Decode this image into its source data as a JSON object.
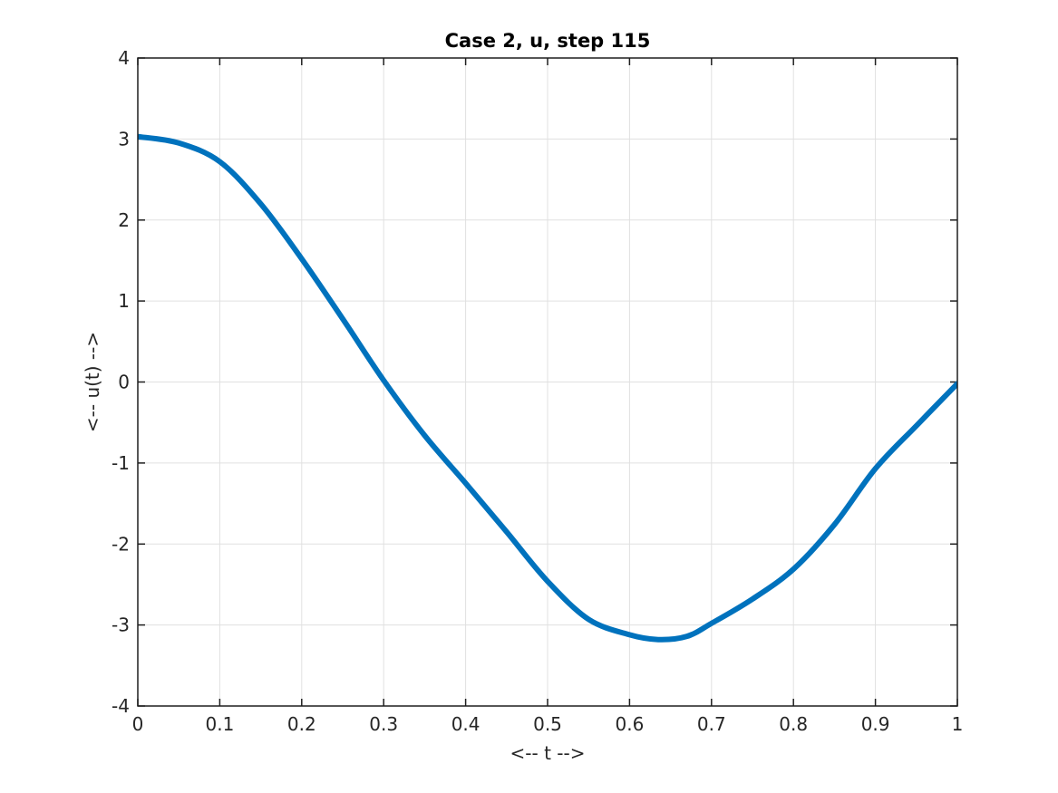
{
  "figure": {
    "background": "#ffffff"
  },
  "chart_data": {
    "type": "line",
    "title": "Case 2, u, step 115",
    "xlabel": "<-- t -->",
    "ylabel": "<-- u(t) -->",
    "xlim": [
      0,
      1
    ],
    "ylim": [
      -4,
      4
    ],
    "x_ticks": [
      0,
      0.1,
      0.2,
      0.3,
      0.4,
      0.5,
      0.6,
      0.7,
      0.8,
      0.9,
      1
    ],
    "x_tick_labels": [
      "0",
      "0.1",
      "0.2",
      "0.3",
      "0.4",
      "0.5",
      "0.6",
      "0.7",
      "0.8",
      "0.9",
      "1"
    ],
    "y_ticks": [
      -4,
      -3,
      -2,
      -1,
      0,
      1,
      2,
      3,
      4
    ],
    "y_tick_labels": [
      "-4",
      "-3",
      "-2",
      "-1",
      "0",
      "1",
      "2",
      "3",
      "4"
    ],
    "grid": true,
    "legend": false,
    "box": true,
    "colors": {
      "line": "#0072BD",
      "grid": "#e0e0e0",
      "axis": "#1f1f1f",
      "tick_text": "#262626",
      "title_text": "#000000",
      "background": "#ffffff"
    },
    "line_width": 6,
    "series": [
      {
        "name": "u",
        "x": [
          0,
          0.05,
          0.1,
          0.15,
          0.2,
          0.25,
          0.3,
          0.35,
          0.4,
          0.45,
          0.5,
          0.55,
          0.6,
          0.635,
          0.67,
          0.7,
          0.75,
          0.8,
          0.85,
          0.9,
          0.95,
          1
        ],
        "y": [
          3.03,
          2.95,
          2.72,
          2.2,
          1.52,
          0.78,
          0.02,
          -0.66,
          -1.25,
          -1.85,
          -2.46,
          -2.93,
          -3.12,
          -3.18,
          -3.14,
          -2.98,
          -2.68,
          -2.31,
          -1.76,
          -1.07,
          -0.54,
          -0.02
        ]
      }
    ]
  }
}
